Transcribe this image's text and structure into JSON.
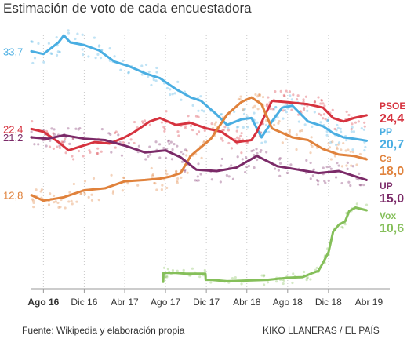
{
  "title": "Estimación de voto de cada encuestadora",
  "source": "Fuente: Wikipedia y elaboración propia",
  "credit": "KIKO LLANERAS / EL PAÍS",
  "chart_data": {
    "type": "line",
    "title": "Estimación de voto de cada encuestadora",
    "xlabel": "",
    "ylabel": "",
    "x_ticks": [
      "Ago 16",
      "Dic 16",
      "Abr 17",
      "Ago 17",
      "Dic 17",
      "Abr 18",
      "Ago 18",
      "Dic 18",
      "Abr 19"
    ],
    "x_range": [
      "2016-06-26",
      "2019-04-28"
    ],
    "ylim": [
      0,
      40
    ],
    "grid": "vertical dotted at month ticks",
    "legend": "direct labels at line ends (right side)",
    "series": [
      {
        "name": "PP",
        "color": "#4aaee2",
        "start_label": "33,7",
        "end_label": "20,7",
        "points": [
          [
            "2016-06-26",
            33.7
          ],
          [
            "2016-08-01",
            33.3
          ],
          [
            "2016-09-15",
            35.0
          ],
          [
            "2016-10-01",
            36.0
          ],
          [
            "2016-10-20",
            35.0
          ],
          [
            "2016-12-01",
            34.6
          ],
          [
            "2017-01-15",
            33.8
          ],
          [
            "2017-03-01",
            32.2
          ],
          [
            "2017-04-15",
            31.5
          ],
          [
            "2017-06-01",
            30.5
          ],
          [
            "2017-07-15",
            29.8
          ],
          [
            "2017-09-01",
            28.2
          ],
          [
            "2017-10-15",
            27.0
          ],
          [
            "2017-11-15",
            26.5
          ],
          [
            "2018-01-01",
            24.5
          ],
          [
            "2018-02-01",
            23.0
          ],
          [
            "2018-03-15",
            23.8
          ],
          [
            "2018-04-15",
            24.0
          ],
          [
            "2018-05-15",
            21.2
          ],
          [
            "2018-06-15",
            23.5
          ],
          [
            "2018-07-15",
            25.5
          ],
          [
            "2018-08-15",
            25.8
          ],
          [
            "2018-10-01",
            23.5
          ],
          [
            "2018-11-15",
            22.8
          ],
          [
            "2018-12-15",
            21.8
          ],
          [
            "2019-01-15",
            21.2
          ],
          [
            "2019-02-15",
            21.0
          ],
          [
            "2019-03-25",
            20.7
          ]
        ]
      },
      {
        "name": "PSOE",
        "color": "#d6333f",
        "start_label": "22,4",
        "end_label": "24,4",
        "points": [
          [
            "2016-06-26",
            22.4
          ],
          [
            "2016-08-01",
            22.0
          ],
          [
            "2016-09-15",
            20.5
          ],
          [
            "2016-10-15",
            19.3
          ],
          [
            "2016-11-15",
            19.8
          ],
          [
            "2017-01-01",
            20.5
          ],
          [
            "2017-02-15",
            20.3
          ],
          [
            "2017-04-01",
            21.2
          ],
          [
            "2017-05-01",
            22.0
          ],
          [
            "2017-06-15",
            23.5
          ],
          [
            "2017-07-15",
            24.0
          ],
          [
            "2017-09-01",
            23.0
          ],
          [
            "2017-10-15",
            23.3
          ],
          [
            "2017-12-01",
            22.5
          ],
          [
            "2018-01-15",
            22.0
          ],
          [
            "2018-03-01",
            20.5
          ],
          [
            "2018-04-15",
            20.8
          ],
          [
            "2018-05-01",
            22.0
          ],
          [
            "2018-06-15",
            26.5
          ],
          [
            "2018-08-01",
            26.3
          ],
          [
            "2018-10-01",
            26.0
          ],
          [
            "2018-11-15",
            25.5
          ],
          [
            "2018-12-15",
            24.0
          ],
          [
            "2019-01-15",
            23.5
          ],
          [
            "2019-02-15",
            24.0
          ],
          [
            "2019-03-25",
            24.4
          ]
        ]
      },
      {
        "name": "Cs",
        "color": "#e0823c",
        "start_label": "12,8",
        "end_label": "18,0",
        "points": [
          [
            "2016-06-26",
            12.8
          ],
          [
            "2016-08-01",
            12.0
          ],
          [
            "2016-10-01",
            12.5
          ],
          [
            "2016-12-01",
            13.5
          ],
          [
            "2017-02-01",
            13.8
          ],
          [
            "2017-04-01",
            14.8
          ],
          [
            "2017-06-01",
            15.0
          ],
          [
            "2017-07-15",
            15.2
          ],
          [
            "2017-08-15",
            15.5
          ],
          [
            "2017-09-15",
            16.0
          ],
          [
            "2017-10-15",
            18.5
          ],
          [
            "2017-12-15",
            21.0
          ],
          [
            "2018-02-01",
            24.5
          ],
          [
            "2018-03-15",
            26.3
          ],
          [
            "2018-04-15",
            27.0
          ],
          [
            "2018-05-15",
            26.0
          ],
          [
            "2018-06-15",
            22.5
          ],
          [
            "2018-08-15",
            21.2
          ],
          [
            "2018-10-01",
            20.8
          ],
          [
            "2018-11-15",
            19.5
          ],
          [
            "2019-01-01",
            18.7
          ],
          [
            "2019-02-15",
            18.5
          ],
          [
            "2019-03-25",
            18.0
          ]
        ]
      },
      {
        "name": "UP",
        "color": "#7b2a68",
        "start_label": "21,2",
        "end_label": "15,0",
        "points": [
          [
            "2016-06-26",
            21.2
          ],
          [
            "2016-08-15",
            21.0
          ],
          [
            "2016-10-01",
            21.5
          ],
          [
            "2016-12-01",
            21.0
          ],
          [
            "2017-02-01",
            20.8
          ],
          [
            "2017-04-01",
            20.0
          ],
          [
            "2017-06-01",
            19.0
          ],
          [
            "2017-08-01",
            19.3
          ],
          [
            "2017-09-15",
            18.3
          ],
          [
            "2017-11-01",
            16.5
          ],
          [
            "2018-01-01",
            16.3
          ],
          [
            "2018-03-01",
            16.8
          ],
          [
            "2018-05-01",
            18.5
          ],
          [
            "2018-07-01",
            17.0
          ],
          [
            "2018-09-01",
            16.5
          ],
          [
            "2018-11-01",
            16.0
          ],
          [
            "2019-01-01",
            16.3
          ],
          [
            "2019-03-25",
            15.0
          ]
        ]
      },
      {
        "name": "Vox",
        "color": "#85bf5a",
        "start_label": "",
        "end_label": "10,6",
        "points": [
          [
            "2017-07-25",
            0.2
          ],
          [
            "2017-07-26",
            1.5
          ],
          [
            "2017-09-01",
            1.5
          ],
          [
            "2017-10-01",
            1.4
          ],
          [
            "2017-11-28",
            1.4
          ],
          [
            "2017-11-29",
            0.5
          ],
          [
            "2017-12-15",
            0.5
          ],
          [
            "2018-02-01",
            0.3
          ],
          [
            "2018-04-01",
            0.4
          ],
          [
            "2018-06-01",
            0.5
          ],
          [
            "2018-08-01",
            0.8
          ],
          [
            "2018-09-15",
            0.9
          ],
          [
            "2018-10-15",
            1.5
          ],
          [
            "2018-11-01",
            1.8
          ],
          [
            "2018-11-15",
            3.0
          ],
          [
            "2018-12-01",
            4.5
          ],
          [
            "2018-12-15",
            7.5
          ],
          [
            "2019-01-01",
            8.5
          ],
          [
            "2019-01-20",
            9.0
          ],
          [
            "2019-02-01",
            10.5
          ],
          [
            "2019-02-20",
            11.0
          ],
          [
            "2019-03-25",
            10.6
          ]
        ]
      }
    ]
  }
}
